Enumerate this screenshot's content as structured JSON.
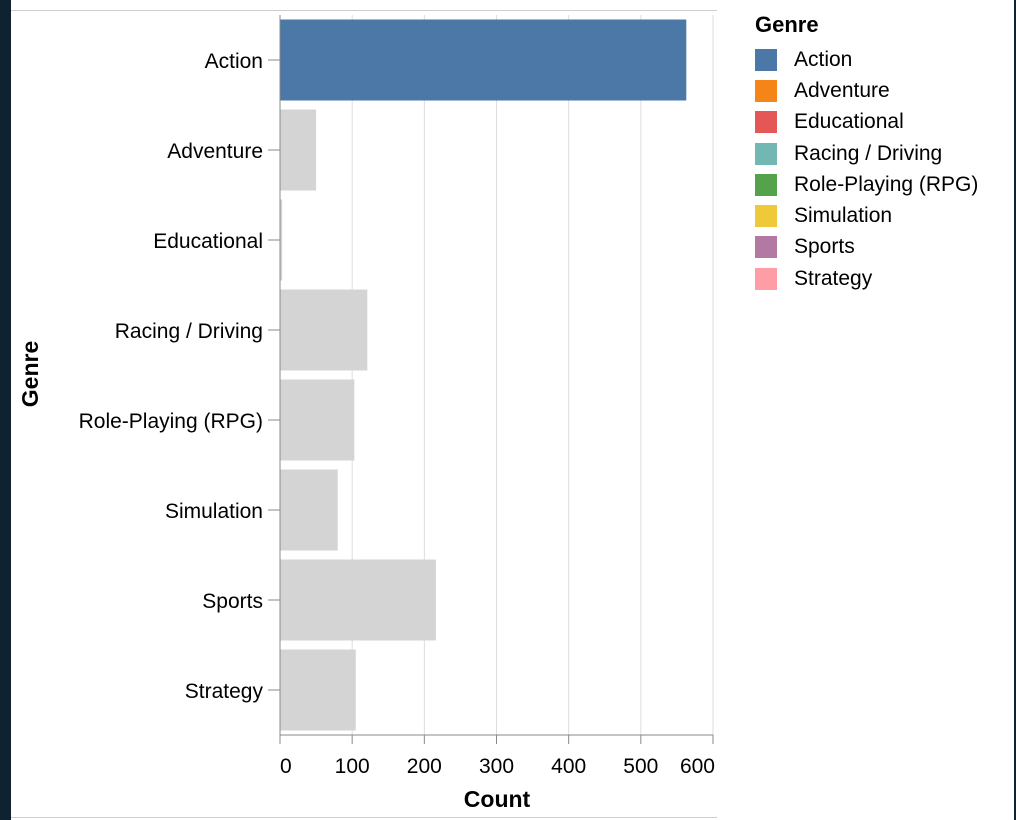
{
  "chart_data": {
    "type": "bar",
    "orientation": "horizontal",
    "ylabel": "Genre",
    "xlabel": "Count",
    "categories": [
      "Action",
      "Adventure",
      "Educational",
      "Racing / Driving",
      "Role-Playing (RPG)",
      "Simulation",
      "Sports",
      "Strategy"
    ],
    "values": [
      563,
      50,
      3,
      121,
      103,
      80,
      216,
      105
    ],
    "highlighted": "Action",
    "xlim": [
      0,
      600
    ],
    "xticks": [
      0,
      100,
      200,
      300,
      400,
      500,
      600
    ],
    "grid": true,
    "colors": {
      "highlight": "#4c78a8",
      "muted": "#d4d4d4"
    },
    "legend": {
      "title": "Genre",
      "placement": "right",
      "entries": [
        {
          "label": "Action",
          "color": "#4c78a8"
        },
        {
          "label": "Adventure",
          "color": "#f58518"
        },
        {
          "label": "Educational",
          "color": "#e45756"
        },
        {
          "label": "Racing / Driving",
          "color": "#72b7b2"
        },
        {
          "label": "Role-Playing (RPG)",
          "color": "#54a24b"
        },
        {
          "label": "Simulation",
          "color": "#eeca3b"
        },
        {
          "label": "Sports",
          "color": "#b279a2"
        },
        {
          "label": "Strategy",
          "color": "#ff9da6"
        }
      ]
    }
  }
}
